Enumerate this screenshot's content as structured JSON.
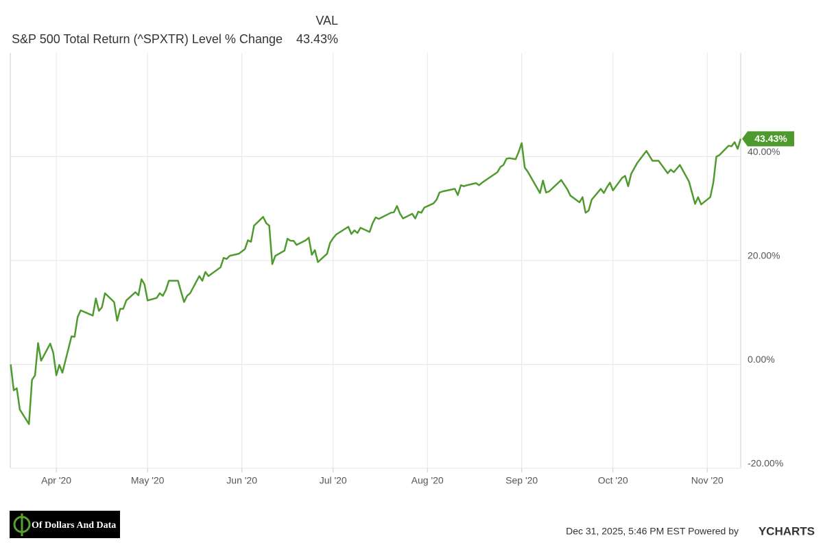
{
  "chart_data": {
    "type": "line",
    "legend_header": "VAL",
    "series": [
      {
        "name": "S&P 500 Total Return (^SPXTR) Level % Change",
        "color": "#4f9a2e",
        "current_label": "43.43%",
        "x": [
          0,
          1,
          2,
          3,
          6,
          7,
          8,
          9,
          10,
          13,
          14,
          15,
          16,
          17,
          20,
          21,
          22,
          23,
          27,
          28,
          29,
          30,
          31,
          34,
          35,
          36,
          37,
          38,
          41,
          42,
          43,
          44,
          45,
          48,
          49,
          50,
          51,
          52,
          55,
          56,
          57,
          58,
          59,
          62,
          63,
          64,
          65,
          69,
          70,
          71,
          72,
          75,
          77,
          78,
          79,
          80,
          83,
          84,
          85,
          86,
          87,
          90,
          91,
          92,
          93,
          94,
          97,
          98,
          99,
          100,
          101,
          104,
          105,
          106,
          107,
          111,
          112,
          113,
          114,
          115,
          118,
          119,
          120,
          121,
          125,
          126,
          127,
          128,
          129,
          132,
          133,
          134,
          135,
          136,
          139,
          140,
          141,
          142,
          146,
          147,
          148,
          149,
          150,
          153,
          154,
          155,
          160,
          161,
          162,
          163,
          164,
          166,
          167,
          168,
          169,
          170,
          174,
          175,
          176,
          177,
          181,
          182,
          183,
          184,
          187,
          188,
          189,
          190,
          191,
          194,
          195,
          196,
          197,
          198,
          201,
          202,
          203,
          204,
          206,
          209,
          211,
          213,
          216,
          217,
          218,
          220,
          223,
          225,
          226,
          227,
          230,
          231,
          232,
          233,
          236,
          237,
          238,
          239,
          240
        ],
        "values": [
          0,
          -5.0,
          -4.6,
          -8.7,
          -11.5,
          -3.0,
          -2.1,
          4.1,
          0.7,
          4.0,
          2.2,
          -2.1,
          -0.1,
          -1.6,
          5.4,
          5.3,
          9.1,
          10.4,
          9.4,
          12.7,
          10.3,
          11.0,
          13.7,
          12.0,
          8.4,
          10.7,
          10.7,
          12.3,
          13.9,
          13.3,
          16.4,
          15.4,
          12.3,
          12.8,
          13.7,
          13.2,
          14.3,
          16.1,
          16.1,
          14.0,
          12.0,
          13.2,
          13.7,
          17.0,
          16.1,
          17.8,
          17.0,
          18.7,
          20.5,
          20.3,
          20.9,
          21.3,
          22.2,
          23.9,
          23.6,
          26.7,
          28.4,
          27.2,
          26.7,
          19.3,
          20.9,
          21.9,
          24.2,
          23.8,
          23.8,
          23.0,
          23.9,
          24.4,
          21.1,
          22.0,
          19.7,
          21.3,
          23.4,
          24.3,
          25.0,
          26.5,
          25.1,
          25.8,
          25.3,
          26.3,
          25.5,
          27.2,
          28.3,
          28.0,
          29.2,
          29.3,
          30.5,
          29.0,
          28.1,
          29.0,
          28.1,
          29.4,
          29.2,
          30.2,
          31.0,
          31.7,
          33.1,
          33.3,
          33.8,
          32.6,
          34.5,
          34.3,
          34.5,
          34.9,
          34.5,
          35.0,
          37.0,
          38.0,
          38.4,
          39.6,
          39.7,
          39.5,
          40.9,
          42.6,
          37.9,
          37.1,
          33.0,
          35.4,
          33.1,
          33.3,
          35.5,
          34.6,
          33.7,
          32.5,
          31.2,
          32.2,
          29.2,
          29.6,
          31.7,
          33.8,
          33.0,
          34.1,
          35.0,
          33.5,
          35.9,
          36.3,
          34.3,
          36.7,
          38.8,
          41.1,
          39.2,
          39.2,
          36.8,
          37.5,
          37.0,
          38.4,
          35.2,
          30.9,
          32.2,
          30.8,
          32.2,
          35.0,
          40.0,
          40.3,
          42.1,
          42.0,
          42.8,
          41.5,
          43.43
        ]
      }
    ],
    "xlim": [
      0,
      240
    ],
    "xticks": [
      {
        "value": 15,
        "label": "Apr '20"
      },
      {
        "value": 45,
        "label": "May '20"
      },
      {
        "value": 76,
        "label": "Jun '20"
      },
      {
        "value": 106,
        "label": "Jul '20"
      },
      {
        "value": 137,
        "label": "Aug '20"
      },
      {
        "value": 168,
        "label": "Sep '20"
      },
      {
        "value": 198,
        "label": "Oct '20"
      },
      {
        "value": 229,
        "label": "Nov '20"
      }
    ],
    "ylim": [
      -20,
      60
    ],
    "yticks": [
      {
        "value": -20,
        "label": "-20.00%"
      },
      {
        "value": 0,
        "label": "0.00%"
      },
      {
        "value": 20,
        "label": "20.00%"
      },
      {
        "value": 40,
        "label": "40.00%"
      }
    ],
    "grid": true,
    "footer": {
      "timestamp": "Dec 31, 2025, 5:46 PM EST Powered by",
      "brand": "YCHARTS",
      "logo": "Of Dollars And Data"
    }
  }
}
